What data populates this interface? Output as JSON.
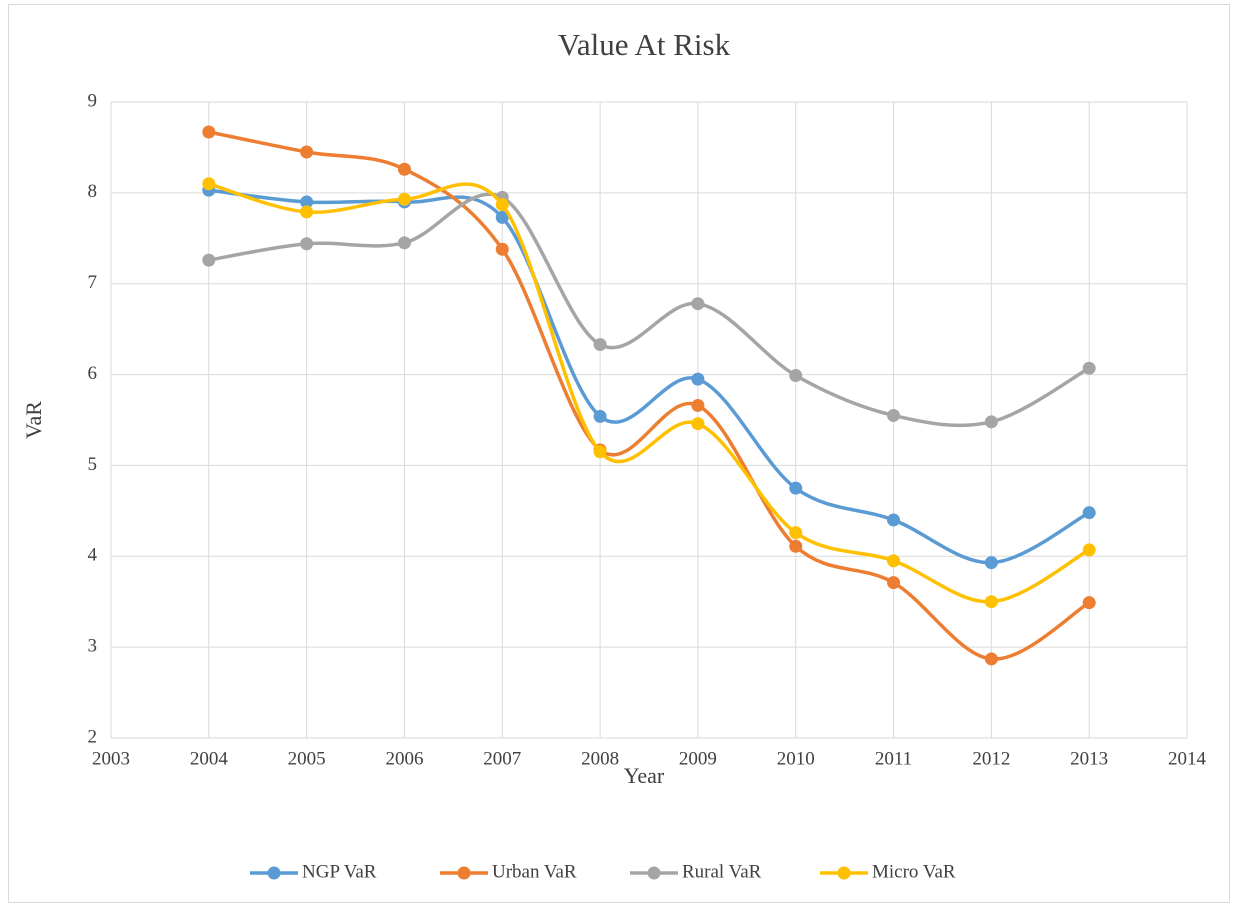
{
  "chart_data": {
    "type": "scatter",
    "smooth": true,
    "title": "Value At Risk",
    "x_label": "Year",
    "y_label": "VaR",
    "x": [
      2004,
      2005,
      2006,
      2007,
      2008,
      2009,
      2010,
      2011,
      2012,
      2013
    ],
    "series": [
      {
        "name": "NGP VaR",
        "color": "#5b9bd5",
        "values": [
          8.03,
          7.9,
          7.9,
          7.73,
          5.54,
          5.95,
          4.75,
          4.4,
          3.93,
          4.48
        ]
      },
      {
        "name": "Urban VaR",
        "color": "#ed7d31",
        "values": [
          8.67,
          8.45,
          8.26,
          7.38,
          5.17,
          5.66,
          4.11,
          3.71,
          2.87,
          3.49
        ]
      },
      {
        "name": "Rural VaR",
        "color": "#a5a5a5",
        "values": [
          7.26,
          7.44,
          7.45,
          7.95,
          6.33,
          6.78,
          5.99,
          5.55,
          5.48,
          6.07
        ]
      },
      {
        "name": "Micro VaR",
        "color": "#ffc000",
        "values": [
          8.1,
          7.79,
          7.93,
          7.87,
          5.15,
          5.46,
          4.26,
          3.95,
          3.5,
          4.07
        ]
      }
    ],
    "xlim": [
      2003,
      2014
    ],
    "xticks": [
      2003,
      2004,
      2005,
      2006,
      2007,
      2008,
      2009,
      2010,
      2011,
      2012,
      2013,
      2014
    ],
    "ylim": [
      2,
      9
    ],
    "yticks": [
      2,
      3,
      4,
      5,
      6,
      7,
      8,
      9
    ],
    "grid": true,
    "legend": "bottom"
  }
}
